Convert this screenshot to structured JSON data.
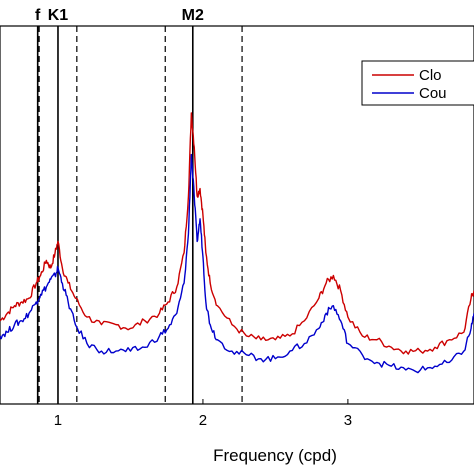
{
  "chart_data": {
    "type": "line",
    "title": "",
    "xlabel": "Frequency (cpd)",
    "ylabel": "",
    "xlim": [
      0.6,
      3.87
    ],
    "ylim": [
      0,
      1
    ],
    "x_ticks": [
      1,
      2,
      3
    ],
    "x_tick_labels": [
      "1",
      "2",
      "3"
    ],
    "grid": false,
    "legend_placement": "top-right",
    "solid_lines": [
      {
        "label": "f",
        "x": 0.86
      },
      {
        "label": "K1",
        "x": 1.0
      },
      {
        "label": "M2",
        "x": 1.93
      }
    ],
    "dashed_lines": [
      0.87,
      1.13,
      1.74,
      2.27
    ],
    "series": [
      {
        "name": "Clo",
        "color": "#cc0000",
        "x": [
          0.6,
          0.65,
          0.7,
          0.75,
          0.8,
          0.85,
          0.88,
          0.92,
          0.95,
          0.98,
          1.0,
          1.03,
          1.07,
          1.12,
          1.2,
          1.3,
          1.4,
          1.5,
          1.6,
          1.7,
          1.76,
          1.82,
          1.87,
          1.9,
          1.92,
          1.94,
          1.96,
          1.98,
          2.0,
          2.02,
          2.05,
          2.1,
          2.2,
          2.3,
          2.4,
          2.5,
          2.6,
          2.7,
          2.8,
          2.85,
          2.9,
          2.95,
          3.0,
          3.1,
          3.2,
          3.3,
          3.4,
          3.5,
          3.6,
          3.7,
          3.8,
          3.85,
          3.87
        ],
        "values": [
          0.22,
          0.24,
          0.26,
          0.27,
          0.28,
          0.32,
          0.34,
          0.38,
          0.36,
          0.4,
          0.43,
          0.36,
          0.32,
          0.28,
          0.23,
          0.21,
          0.21,
          0.2,
          0.22,
          0.24,
          0.27,
          0.31,
          0.4,
          0.55,
          0.77,
          0.68,
          0.55,
          0.57,
          0.5,
          0.4,
          0.32,
          0.26,
          0.21,
          0.18,
          0.17,
          0.17,
          0.18,
          0.22,
          0.28,
          0.32,
          0.34,
          0.3,
          0.23,
          0.18,
          0.17,
          0.15,
          0.14,
          0.14,
          0.15,
          0.17,
          0.19,
          0.28,
          0.3
        ]
      },
      {
        "name": "Cou",
        "color": "#0000cc",
        "x": [
          0.6,
          0.65,
          0.7,
          0.75,
          0.8,
          0.85,
          0.88,
          0.92,
          0.95,
          0.98,
          1.0,
          1.03,
          1.07,
          1.12,
          1.2,
          1.3,
          1.4,
          1.5,
          1.6,
          1.7,
          1.76,
          1.82,
          1.87,
          1.9,
          1.92,
          1.94,
          1.96,
          1.98,
          2.0,
          2.02,
          2.05,
          2.1,
          2.2,
          2.3,
          2.4,
          2.5,
          2.6,
          2.7,
          2.8,
          2.85,
          2.9,
          2.95,
          3.0,
          3.1,
          3.2,
          3.3,
          3.4,
          3.5,
          3.6,
          3.7,
          3.8,
          3.85,
          3.87
        ],
        "values": [
          0.18,
          0.19,
          0.21,
          0.22,
          0.24,
          0.27,
          0.29,
          0.31,
          0.33,
          0.34,
          0.36,
          0.32,
          0.27,
          0.21,
          0.16,
          0.14,
          0.14,
          0.14,
          0.15,
          0.18,
          0.2,
          0.24,
          0.32,
          0.45,
          0.66,
          0.55,
          0.43,
          0.49,
          0.39,
          0.27,
          0.21,
          0.17,
          0.14,
          0.13,
          0.12,
          0.12,
          0.14,
          0.16,
          0.2,
          0.24,
          0.26,
          0.22,
          0.16,
          0.13,
          0.11,
          0.1,
          0.09,
          0.09,
          0.1,
          0.11,
          0.14,
          0.2,
          0.24
        ]
      }
    ]
  }
}
